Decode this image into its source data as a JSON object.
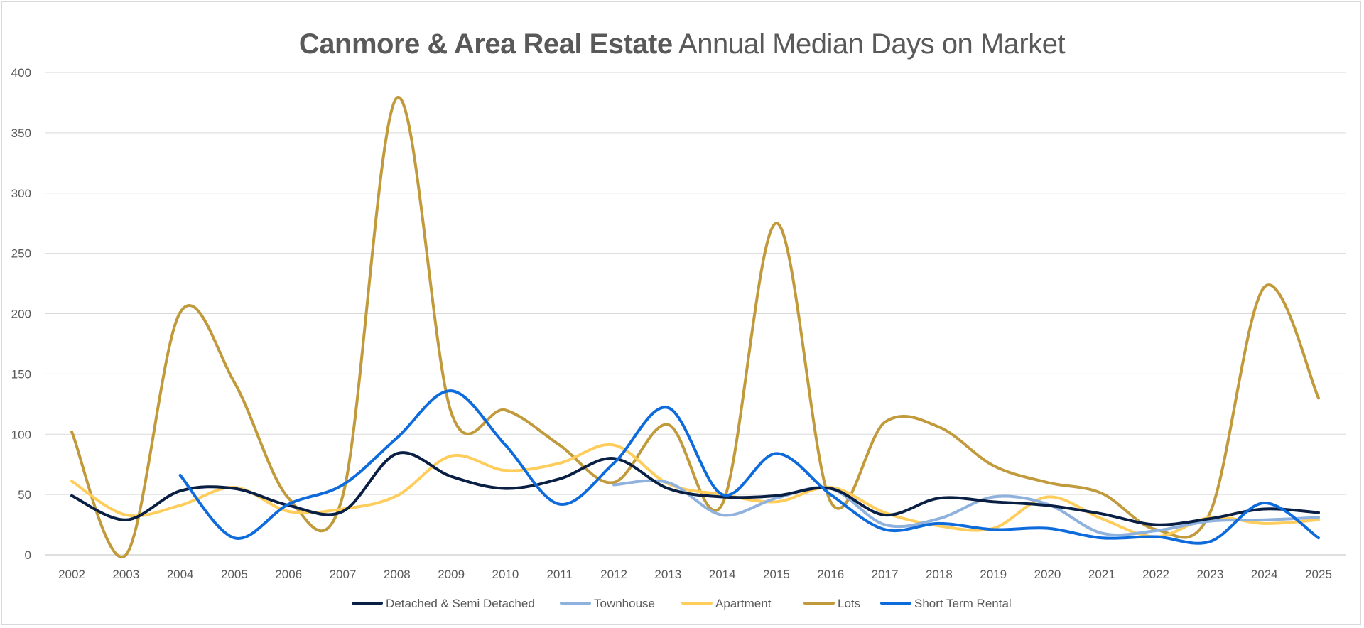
{
  "title": {
    "bold": "Canmore & Area Real Estate",
    "regular": "Annual Median Days on Market"
  },
  "chart_data": {
    "type": "line",
    "title": "Canmore & Area Real Estate Annual Median Days on Market",
    "xlabel": "",
    "ylabel": "",
    "ylim": [
      0,
      400
    ],
    "yticks": [
      0,
      50,
      100,
      150,
      200,
      250,
      300,
      350,
      400
    ],
    "grid": true,
    "legend": "bottom",
    "categories": [
      "2002",
      "2003",
      "2004",
      "2005",
      "2006",
      "2007",
      "2008",
      "2009",
      "2010",
      "2011",
      "2012",
      "2013",
      "2014",
      "2015",
      "2016",
      "2017",
      "2018",
      "2019",
      "2020",
      "2021",
      "2022",
      "2023",
      "2024",
      "2025"
    ],
    "series": [
      {
        "name": "Detached & Semi Detached",
        "color": "#0a1f44",
        "values": [
          49,
          29,
          53,
          55,
          41,
          36,
          84,
          65,
          55,
          63,
          80,
          55,
          48,
          49,
          55,
          33,
          47,
          44,
          41,
          34,
          25,
          30,
          38,
          35
        ]
      },
      {
        "name": "Townhouse",
        "color": "#8eb1dd",
        "values": [
          null,
          null,
          null,
          null,
          null,
          null,
          null,
          null,
          null,
          null,
          58,
          60,
          33,
          47,
          55,
          25,
          30,
          48,
          42,
          18,
          20,
          28,
          29,
          31
        ]
      },
      {
        "name": "Apartment",
        "color": "#ffcd5c",
        "values": [
          61,
          33,
          41,
          56,
          36,
          38,
          49,
          82,
          70,
          76,
          91,
          59,
          50,
          44,
          56,
          35,
          24,
          22,
          48,
          30,
          15,
          31,
          26,
          29
        ]
      },
      {
        "name": "Lots",
        "color": "#c19a3c",
        "values": [
          102,
          0,
          201,
          143,
          47,
          49,
          379,
          118,
          120,
          91,
          60,
          108,
          42,
          275,
          44,
          110,
          106,
          74,
          60,
          51,
          21,
          35,
          222,
          130
        ]
      },
      {
        "name": "Short Term Rental",
        "color": "#0d6bdb",
        "values": [
          null,
          null,
          66,
          14,
          42,
          58,
          97,
          136,
          91,
          42,
          76,
          122,
          50,
          84,
          50,
          21,
          26,
          21,
          22,
          14,
          15,
          11,
          43,
          14
        ]
      }
    ]
  }
}
